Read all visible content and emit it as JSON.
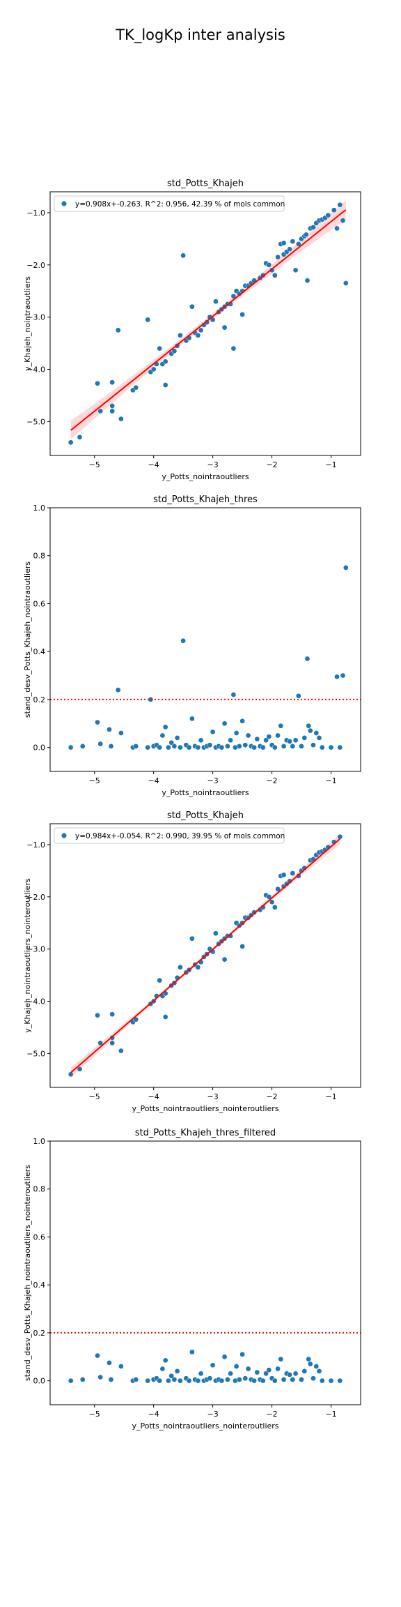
{
  "suptitle": "TK_logKp inter analysis",
  "chart_data": [
    {
      "type": "scatter",
      "title": "std_Potts_Khajeh",
      "xlabel": "y_Potts_nointraoutliers",
      "ylabel": "y_Khajeh_nointraoutliers",
      "xlim": [
        -5.75,
        -0.5
      ],
      "ylim": [
        -5.65,
        -0.6
      ],
      "xticks": [
        -5,
        -4,
        -3,
        -2,
        -1
      ],
      "yticks": [
        -5,
        -4,
        -3,
        -2,
        -1
      ],
      "legend": {
        "position": "top-left",
        "label": "y=0.908x+-0.263. R^2: 0.956, 42.39 % of mols common"
      },
      "regression": {
        "slope": 0.908,
        "intercept": -0.263,
        "x_range": [
          -5.4,
          -0.75
        ],
        "ci": true
      },
      "color": "#1f77b4",
      "line_color": "#ff0000",
      "points": [
        [
          -5.4,
          -5.4
        ],
        [
          -5.25,
          -5.3
        ],
        [
          -4.95,
          -4.27
        ],
        [
          -4.9,
          -4.8
        ],
        [
          -4.7,
          -4.25
        ],
        [
          -4.7,
          -4.7
        ],
        [
          -4.7,
          -4.8
        ],
        [
          -4.6,
          -3.25
        ],
        [
          -4.55,
          -4.95
        ],
        [
          -4.35,
          -4.4
        ],
        [
          -4.3,
          -4.35
        ],
        [
          -4.1,
          -3.05
        ],
        [
          -4.05,
          -4.05
        ],
        [
          -4.0,
          -4.0
        ],
        [
          -3.95,
          -3.9
        ],
        [
          -3.9,
          -3.6
        ],
        [
          -3.85,
          -3.9
        ],
        [
          -3.8,
          -3.85
        ],
        [
          -3.8,
          -4.3
        ],
        [
          -3.7,
          -3.7
        ],
        [
          -3.65,
          -3.65
        ],
        [
          -3.6,
          -3.55
        ],
        [
          -3.55,
          -3.35
        ],
        [
          -3.5,
          -1.82
        ],
        [
          -3.45,
          -3.45
        ],
        [
          -3.4,
          -3.4
        ],
        [
          -3.35,
          -2.8
        ],
        [
          -3.3,
          -3.3
        ],
        [
          -3.25,
          -3.35
        ],
        [
          -3.2,
          -3.25
        ],
        [
          -3.15,
          -3.15
        ],
        [
          -3.1,
          -3.1
        ],
        [
          -3.05,
          -3.0
        ],
        [
          -3.0,
          -3.05
        ],
        [
          -2.95,
          -2.7
        ],
        [
          -2.9,
          -2.9
        ],
        [
          -2.85,
          -2.85
        ],
        [
          -2.8,
          -2.8
        ],
        [
          -2.8,
          -3.2
        ],
        [
          -2.75,
          -2.75
        ],
        [
          -2.7,
          -2.75
        ],
        [
          -2.65,
          -2.6
        ],
        [
          -2.65,
          -3.6
        ],
        [
          -2.6,
          -2.5
        ],
        [
          -2.55,
          -2.55
        ],
        [
          -2.5,
          -2.5
        ],
        [
          -2.5,
          -2.95
        ],
        [
          -2.45,
          -2.4
        ],
        [
          -2.4,
          -2.4
        ],
        [
          -2.35,
          -2.35
        ],
        [
          -2.3,
          -2.3
        ],
        [
          -2.2,
          -2.25
        ],
        [
          -2.15,
          -2.2
        ],
        [
          -2.1,
          -1.97
        ],
        [
          -2.05,
          -2.0
        ],
        [
          -2.0,
          -2.1
        ],
        [
          -1.95,
          -2.2
        ],
        [
          -1.9,
          -1.85
        ],
        [
          -1.85,
          -1.6
        ],
        [
          -1.8,
          -1.58
        ],
        [
          -1.8,
          -1.8
        ],
        [
          -1.75,
          -1.75
        ],
        [
          -1.7,
          -1.7
        ],
        [
          -1.65,
          -1.55
        ],
        [
          -1.6,
          -2.1
        ],
        [
          -1.55,
          -1.6
        ],
        [
          -1.5,
          -1.5
        ],
        [
          -1.45,
          -1.45
        ],
        [
          -1.42,
          -1.42
        ],
        [
          -1.4,
          -2.3
        ],
        [
          -1.35,
          -1.3
        ],
        [
          -1.3,
          -1.28
        ],
        [
          -1.25,
          -1.2
        ],
        [
          -1.2,
          -1.15
        ],
        [
          -1.15,
          -1.13
        ],
        [
          -1.1,
          -1.1
        ],
        [
          -1.05,
          -1.05
        ],
        [
          -0.95,
          -0.95
        ],
        [
          -0.9,
          -1.3
        ],
        [
          -0.85,
          -0.85
        ],
        [
          -0.8,
          -1.15
        ],
        [
          -0.75,
          -2.35
        ]
      ]
    },
    {
      "type": "scatter",
      "title": "std_Potts_Khajeh_thres",
      "xlabel": "y_Potts_nointraoutliers",
      "ylabel": "stand_desv_Potts_Khajeh_nointraoutliers",
      "xlim": [
        -5.75,
        -0.5
      ],
      "ylim": [
        -0.1,
        1.0
      ],
      "xticks": [
        -5,
        -4,
        -3,
        -2,
        -1
      ],
      "yticks": [
        0.0,
        0.2,
        0.4,
        0.6,
        0.8,
        1.0
      ],
      "threshold": 0.2,
      "color": "#1f77b4",
      "line_color": "#ff0000",
      "points": [
        [
          -5.4,
          0.0
        ],
        [
          -5.2,
          0.005
        ],
        [
          -4.95,
          0.105
        ],
        [
          -4.9,
          0.015
        ],
        [
          -4.75,
          0.075
        ],
        [
          -4.72,
          0.005
        ],
        [
          -4.6,
          0.24
        ],
        [
          -4.55,
          0.06
        ],
        [
          -4.35,
          0.0
        ],
        [
          -4.3,
          0.005
        ],
        [
          -4.1,
          0.0
        ],
        [
          -4.05,
          0.2
        ],
        [
          -4.0,
          0.005
        ],
        [
          -3.95,
          0.01
        ],
        [
          -3.9,
          0.0
        ],
        [
          -3.85,
          0.05
        ],
        [
          -3.8,
          0.085
        ],
        [
          -3.75,
          0.0
        ],
        [
          -3.7,
          0.02
        ],
        [
          -3.65,
          0.005
        ],
        [
          -3.6,
          0.04
        ],
        [
          -3.55,
          0.0
        ],
        [
          -3.5,
          0.445
        ],
        [
          -3.45,
          0.01
        ],
        [
          -3.4,
          0.0
        ],
        [
          -3.35,
          0.12
        ],
        [
          -3.3,
          0.005
        ],
        [
          -3.25,
          0.0
        ],
        [
          -3.2,
          0.03
        ],
        [
          -3.15,
          0.0
        ],
        [
          -3.1,
          0.005
        ],
        [
          -3.05,
          0.01
        ],
        [
          -3.0,
          0.065
        ],
        [
          -2.95,
          0.0
        ],
        [
          -2.9,
          0.005
        ],
        [
          -2.85,
          0.0
        ],
        [
          -2.8,
          0.1
        ],
        [
          -2.75,
          0.005
        ],
        [
          -2.7,
          0.03
        ],
        [
          -2.65,
          0.22
        ],
        [
          -2.62,
          0.0
        ],
        [
          -2.6,
          0.06
        ],
        [
          -2.55,
          0.005
        ],
        [
          -2.5,
          0.11
        ],
        [
          -2.45,
          0.01
        ],
        [
          -2.4,
          0.05
        ],
        [
          -2.35,
          0.005
        ],
        [
          -2.3,
          0.0
        ],
        [
          -2.25,
          0.035
        ],
        [
          -2.2,
          0.005
        ],
        [
          -2.15,
          0.0
        ],
        [
          -2.1,
          0.03
        ],
        [
          -2.05,
          0.045
        ],
        [
          -2.0,
          0.01
        ],
        [
          -1.95,
          0.0
        ],
        [
          -1.9,
          0.05
        ],
        [
          -1.85,
          0.09
        ],
        [
          -1.8,
          0.005
        ],
        [
          -1.75,
          0.03
        ],
        [
          -1.7,
          0.025
        ],
        [
          -1.65,
          0.005
        ],
        [
          -1.6,
          0.03
        ],
        [
          -1.55,
          0.215
        ],
        [
          -1.5,
          0.005
        ],
        [
          -1.45,
          0.04
        ],
        [
          -1.4,
          0.37
        ],
        [
          -1.38,
          0.09
        ],
        [
          -1.35,
          0.07
        ],
        [
          -1.3,
          0.01
        ],
        [
          -1.25,
          0.06
        ],
        [
          -1.2,
          0.04
        ],
        [
          -1.15,
          0.0
        ],
        [
          -1.0,
          0.0
        ],
        [
          -0.9,
          0.295
        ],
        [
          -0.85,
          0.0
        ],
        [
          -0.8,
          0.3
        ],
        [
          -0.75,
          0.75
        ]
      ]
    },
    {
      "type": "scatter",
      "title": "std_Potts_Khajeh",
      "xlabel": "y_Potts_nointraoutliers_nointeroutliers",
      "ylabel": "y_Khajeh_nointraoutliers_nointeroutliers",
      "xlim": [
        -5.75,
        -0.5
      ],
      "ylim": [
        -5.65,
        -0.6
      ],
      "xticks": [
        -5,
        -4,
        -3,
        -2,
        -1
      ],
      "yticks": [
        -5,
        -4,
        -3,
        -2,
        -1
      ],
      "legend": {
        "position": "top-left",
        "label": "y=0.984x+-0.054. R^2: 0.990, 39.95 % of mols common"
      },
      "regression": {
        "slope": 0.984,
        "intercept": -0.054,
        "x_range": [
          -5.4,
          -0.85
        ],
        "ci": true
      },
      "color": "#1f77b4",
      "line_color": "#ff0000",
      "points": [
        [
          -5.4,
          -5.4
        ],
        [
          -5.25,
          -5.3
        ],
        [
          -4.95,
          -4.27
        ],
        [
          -4.9,
          -4.8
        ],
        [
          -4.7,
          -4.25
        ],
        [
          -4.7,
          -4.7
        ],
        [
          -4.7,
          -4.8
        ],
        [
          -4.55,
          -4.95
        ],
        [
          -4.35,
          -4.4
        ],
        [
          -4.3,
          -4.35
        ],
        [
          -4.05,
          -4.05
        ],
        [
          -4.0,
          -4.0
        ],
        [
          -3.95,
          -3.9
        ],
        [
          -3.9,
          -3.6
        ],
        [
          -3.85,
          -3.9
        ],
        [
          -3.8,
          -3.85
        ],
        [
          -3.8,
          -4.3
        ],
        [
          -3.7,
          -3.7
        ],
        [
          -3.65,
          -3.65
        ],
        [
          -3.6,
          -3.55
        ],
        [
          -3.55,
          -3.35
        ],
        [
          -3.45,
          -3.45
        ],
        [
          -3.4,
          -3.4
        ],
        [
          -3.35,
          -2.8
        ],
        [
          -3.3,
          -3.3
        ],
        [
          -3.25,
          -3.35
        ],
        [
          -3.2,
          -3.25
        ],
        [
          -3.15,
          -3.15
        ],
        [
          -3.1,
          -3.1
        ],
        [
          -3.05,
          -3.0
        ],
        [
          -3.0,
          -3.05
        ],
        [
          -2.95,
          -2.7
        ],
        [
          -2.9,
          -2.9
        ],
        [
          -2.85,
          -2.85
        ],
        [
          -2.8,
          -2.8
        ],
        [
          -2.8,
          -3.2
        ],
        [
          -2.75,
          -2.75
        ],
        [
          -2.7,
          -2.75
        ],
        [
          -2.6,
          -2.5
        ],
        [
          -2.55,
          -2.55
        ],
        [
          -2.5,
          -2.5
        ],
        [
          -2.5,
          -2.95
        ],
        [
          -2.45,
          -2.4
        ],
        [
          -2.4,
          -2.4
        ],
        [
          -2.35,
          -2.35
        ],
        [
          -2.3,
          -2.3
        ],
        [
          -2.2,
          -2.25
        ],
        [
          -2.15,
          -2.2
        ],
        [
          -2.1,
          -1.97
        ],
        [
          -2.05,
          -2.0
        ],
        [
          -2.0,
          -2.1
        ],
        [
          -1.95,
          -2.2
        ],
        [
          -1.9,
          -1.85
        ],
        [
          -1.85,
          -1.6
        ],
        [
          -1.8,
          -1.58
        ],
        [
          -1.8,
          -1.8
        ],
        [
          -1.75,
          -1.75
        ],
        [
          -1.7,
          -1.7
        ],
        [
          -1.65,
          -1.55
        ],
        [
          -1.55,
          -1.6
        ],
        [
          -1.5,
          -1.5
        ],
        [
          -1.45,
          -1.45
        ],
        [
          -1.35,
          -1.3
        ],
        [
          -1.3,
          -1.28
        ],
        [
          -1.25,
          -1.2
        ],
        [
          -1.2,
          -1.15
        ],
        [
          -1.15,
          -1.13
        ],
        [
          -1.1,
          -1.1
        ],
        [
          -1.05,
          -1.05
        ],
        [
          -0.95,
          -0.95
        ],
        [
          -0.85,
          -0.85
        ]
      ]
    },
    {
      "type": "scatter",
      "title": "std_Potts_Khajeh_thres_filtered",
      "xlabel": "y_Potts_nointraoutliers_nointeroutliers",
      "ylabel": "stand_desv_Potts_Khajeh_nointraoutliers_nointeroutliers",
      "xlim": [
        -5.75,
        -0.5
      ],
      "ylim": [
        -0.1,
        1.0
      ],
      "xticks": [
        -5,
        -4,
        -3,
        -2,
        -1
      ],
      "yticks": [
        0.0,
        0.2,
        0.4,
        0.6,
        0.8,
        1.0
      ],
      "threshold": 0.2,
      "color": "#1f77b4",
      "line_color": "#ff0000",
      "points": [
        [
          -5.4,
          0.0
        ],
        [
          -5.2,
          0.005
        ],
        [
          -4.95,
          0.105
        ],
        [
          -4.9,
          0.015
        ],
        [
          -4.75,
          0.075
        ],
        [
          -4.72,
          0.005
        ],
        [
          -4.55,
          0.06
        ],
        [
          -4.35,
          0.0
        ],
        [
          -4.3,
          0.005
        ],
        [
          -4.1,
          0.0
        ],
        [
          -4.0,
          0.005
        ],
        [
          -3.95,
          0.01
        ],
        [
          -3.9,
          0.0
        ],
        [
          -3.85,
          0.05
        ],
        [
          -3.8,
          0.085
        ],
        [
          -3.75,
          0.0
        ],
        [
          -3.7,
          0.02
        ],
        [
          -3.65,
          0.005
        ],
        [
          -3.6,
          0.04
        ],
        [
          -3.55,
          0.0
        ],
        [
          -3.45,
          0.01
        ],
        [
          -3.4,
          0.0
        ],
        [
          -3.35,
          0.12
        ],
        [
          -3.3,
          0.005
        ],
        [
          -3.25,
          0.0
        ],
        [
          -3.2,
          0.03
        ],
        [
          -3.15,
          0.0
        ],
        [
          -3.1,
          0.005
        ],
        [
          -3.05,
          0.01
        ],
        [
          -3.0,
          0.065
        ],
        [
          -2.95,
          0.0
        ],
        [
          -2.9,
          0.005
        ],
        [
          -2.85,
          0.0
        ],
        [
          -2.8,
          0.1
        ],
        [
          -2.75,
          0.005
        ],
        [
          -2.7,
          0.03
        ],
        [
          -2.62,
          0.0
        ],
        [
          -2.6,
          0.06
        ],
        [
          -2.55,
          0.005
        ],
        [
          -2.5,
          0.11
        ],
        [
          -2.45,
          0.01
        ],
        [
          -2.4,
          0.05
        ],
        [
          -2.35,
          0.005
        ],
        [
          -2.3,
          0.0
        ],
        [
          -2.25,
          0.035
        ],
        [
          -2.2,
          0.005
        ],
        [
          -2.15,
          0.0
        ],
        [
          -2.1,
          0.03
        ],
        [
          -2.05,
          0.045
        ],
        [
          -2.0,
          0.01
        ],
        [
          -1.95,
          0.0
        ],
        [
          -1.9,
          0.05
        ],
        [
          -1.85,
          0.09
        ],
        [
          -1.8,
          0.005
        ],
        [
          -1.75,
          0.03
        ],
        [
          -1.7,
          0.025
        ],
        [
          -1.65,
          0.005
        ],
        [
          -1.6,
          0.03
        ],
        [
          -1.5,
          0.005
        ],
        [
          -1.45,
          0.04
        ],
        [
          -1.38,
          0.09
        ],
        [
          -1.35,
          0.07
        ],
        [
          -1.3,
          0.01
        ],
        [
          -1.25,
          0.06
        ],
        [
          -1.2,
          0.04
        ],
        [
          -1.15,
          0.0
        ],
        [
          -1.0,
          0.0
        ],
        [
          -0.85,
          0.0
        ]
      ]
    }
  ]
}
